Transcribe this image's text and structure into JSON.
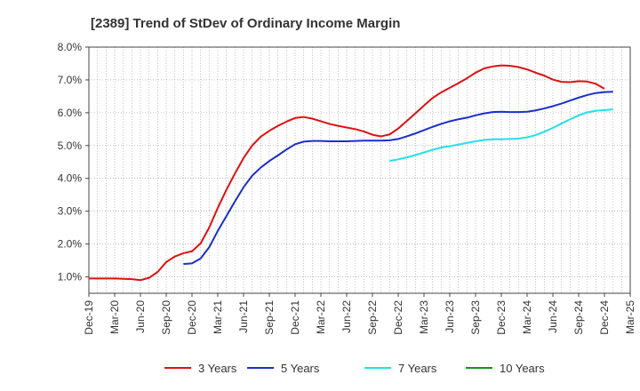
{
  "chart_data": {
    "type": "line",
    "title": "[2389]  Trend of StDev of Ordinary Income Margin",
    "xlabel": "",
    "ylabel": "",
    "x_tick_labels": [
      "Dec-19",
      "Mar-20",
      "Jun-20",
      "Sep-20",
      "Dec-20",
      "Mar-21",
      "Jun-21",
      "Sep-21",
      "Dec-21",
      "Mar-22",
      "Jun-22",
      "Sep-22",
      "Dec-22",
      "Mar-23",
      "Jun-23",
      "Sep-23",
      "Dec-23",
      "Mar-24",
      "Jun-24",
      "Sep-24",
      "Dec-24",
      "Mar-25"
    ],
    "y_tick_labels": [
      "1.0%",
      "2.0%",
      "3.0%",
      "4.0%",
      "5.0%",
      "6.0%",
      "7.0%",
      "8.0%"
    ],
    "ylim": [
      0.5,
      8.0
    ],
    "grid": true,
    "legend_position": "bottom",
    "series": [
      {
        "name": "3 Years",
        "color": "#dd1111",
        "points": [
          [
            "Dec-19",
            0.95
          ],
          [
            "Jan-20",
            0.95
          ],
          [
            "Feb-20",
            0.95
          ],
          [
            "Mar-20",
            0.95
          ],
          [
            "Apr-20",
            0.94
          ],
          [
            "May-20",
            0.93
          ],
          [
            "Jun-20",
            0.9
          ],
          [
            "Jul-20",
            0.97
          ],
          [
            "Aug-20",
            1.15
          ],
          [
            "Sep-20",
            1.45
          ],
          [
            "Oct-20",
            1.62
          ],
          [
            "Nov-20",
            1.72
          ],
          [
            "Dec-20",
            1.78
          ],
          [
            "Jan-21",
            2.02
          ],
          [
            "Feb-21",
            2.5
          ],
          [
            "Mar-21",
            3.1
          ],
          [
            "Apr-21",
            3.65
          ],
          [
            "May-21",
            4.15
          ],
          [
            "Jun-21",
            4.62
          ],
          [
            "Jul-21",
            5.0
          ],
          [
            "Aug-21",
            5.27
          ],
          [
            "Sep-21",
            5.45
          ],
          [
            "Oct-21",
            5.6
          ],
          [
            "Nov-21",
            5.73
          ],
          [
            "Dec-21",
            5.84
          ],
          [
            "Jan-22",
            5.87
          ],
          [
            "Feb-22",
            5.82
          ],
          [
            "Mar-22",
            5.74
          ],
          [
            "Apr-22",
            5.66
          ],
          [
            "May-22",
            5.6
          ],
          [
            "Jun-22",
            5.55
          ],
          [
            "Jul-22",
            5.5
          ],
          [
            "Aug-22",
            5.43
          ],
          [
            "Sep-22",
            5.33
          ],
          [
            "Oct-22",
            5.28
          ],
          [
            "Nov-22",
            5.34
          ],
          [
            "Dec-22",
            5.52
          ],
          [
            "Jan-23",
            5.75
          ],
          [
            "Feb-23",
            5.98
          ],
          [
            "Mar-23",
            6.22
          ],
          [
            "Apr-23",
            6.45
          ],
          [
            "May-23",
            6.62
          ],
          [
            "Jun-23",
            6.76
          ],
          [
            "Jul-23",
            6.9
          ],
          [
            "Aug-23",
            7.05
          ],
          [
            "Sep-23",
            7.22
          ],
          [
            "Oct-23",
            7.35
          ],
          [
            "Nov-23",
            7.41
          ],
          [
            "Dec-23",
            7.44
          ],
          [
            "Jan-24",
            7.43
          ],
          [
            "Feb-24",
            7.39
          ],
          [
            "Mar-24",
            7.32
          ],
          [
            "Apr-24",
            7.22
          ],
          [
            "May-24",
            7.13
          ],
          [
            "Jun-24",
            7.01
          ],
          [
            "Jul-24",
            6.94
          ],
          [
            "Aug-24",
            6.93
          ],
          [
            "Sep-24",
            6.96
          ],
          [
            "Oct-24",
            6.95
          ],
          [
            "Nov-24",
            6.88
          ],
          [
            "Dec-24",
            6.73
          ]
        ]
      },
      {
        "name": "5 Years",
        "color": "#1a2fc9",
        "points": [
          [
            "Nov-20",
            1.39
          ],
          [
            "Dec-20",
            1.41
          ],
          [
            "Jan-21",
            1.56
          ],
          [
            "Feb-21",
            1.9
          ],
          [
            "Mar-21",
            2.4
          ],
          [
            "Apr-21",
            2.85
          ],
          [
            "May-21",
            3.3
          ],
          [
            "Jun-21",
            3.73
          ],
          [
            "Jul-21",
            4.08
          ],
          [
            "Aug-21",
            4.33
          ],
          [
            "Sep-21",
            4.53
          ],
          [
            "Oct-21",
            4.7
          ],
          [
            "Nov-21",
            4.88
          ],
          [
            "Dec-21",
            5.04
          ],
          [
            "Jan-22",
            5.12
          ],
          [
            "Feb-22",
            5.14
          ],
          [
            "Mar-22",
            5.14
          ],
          [
            "Apr-22",
            5.13
          ],
          [
            "May-22",
            5.13
          ],
          [
            "Jun-22",
            5.13
          ],
          [
            "Jul-22",
            5.14
          ],
          [
            "Aug-22",
            5.15
          ],
          [
            "Sep-22",
            5.15
          ],
          [
            "Oct-22",
            5.15
          ],
          [
            "Nov-22",
            5.16
          ],
          [
            "Dec-22",
            5.2
          ],
          [
            "Jan-23",
            5.28
          ],
          [
            "Feb-23",
            5.37
          ],
          [
            "Mar-23",
            5.47
          ],
          [
            "Apr-23",
            5.57
          ],
          [
            "May-23",
            5.66
          ],
          [
            "Jun-23",
            5.74
          ],
          [
            "Jul-23",
            5.8
          ],
          [
            "Aug-23",
            5.85
          ],
          [
            "Sep-23",
            5.92
          ],
          [
            "Oct-23",
            5.98
          ],
          [
            "Nov-23",
            6.02
          ],
          [
            "Dec-23",
            6.03
          ],
          [
            "Jan-24",
            6.02
          ],
          [
            "Feb-24",
            6.02
          ],
          [
            "Mar-24",
            6.03
          ],
          [
            "Apr-24",
            6.07
          ],
          [
            "May-24",
            6.13
          ],
          [
            "Jun-24",
            6.2
          ],
          [
            "Jul-24",
            6.28
          ],
          [
            "Aug-24",
            6.37
          ],
          [
            "Sep-24",
            6.46
          ],
          [
            "Oct-24",
            6.54
          ],
          [
            "Nov-24",
            6.6
          ],
          [
            "Dec-24",
            6.63
          ],
          [
            "Jan-25",
            6.64
          ]
        ]
      },
      {
        "name": "7 Years",
        "color": "#22e0e8",
        "points": [
          [
            "Nov-22",
            4.53
          ],
          [
            "Dec-22",
            4.58
          ],
          [
            "Jan-23",
            4.64
          ],
          [
            "Feb-23",
            4.71
          ],
          [
            "Mar-23",
            4.79
          ],
          [
            "Apr-23",
            4.87
          ],
          [
            "May-23",
            4.94
          ],
          [
            "Jun-23",
            4.98
          ],
          [
            "Jul-23",
            5.03
          ],
          [
            "Aug-23",
            5.08
          ],
          [
            "Sep-23",
            5.13
          ],
          [
            "Oct-23",
            5.17
          ],
          [
            "Nov-23",
            5.19
          ],
          [
            "Dec-23",
            5.19
          ],
          [
            "Jan-24",
            5.2
          ],
          [
            "Feb-24",
            5.21
          ],
          [
            "Mar-24",
            5.25
          ],
          [
            "Apr-24",
            5.32
          ],
          [
            "May-24",
            5.42
          ],
          [
            "Jun-24",
            5.54
          ],
          [
            "Jul-24",
            5.67
          ],
          [
            "Aug-24",
            5.8
          ],
          [
            "Sep-24",
            5.92
          ],
          [
            "Oct-24",
            6.01
          ],
          [
            "Nov-24",
            6.06
          ],
          [
            "Dec-24",
            6.08
          ],
          [
            "Jan-25",
            6.1
          ]
        ]
      },
      {
        "name": "10 Years",
        "color": "#1e8c1e",
        "points": []
      }
    ]
  }
}
